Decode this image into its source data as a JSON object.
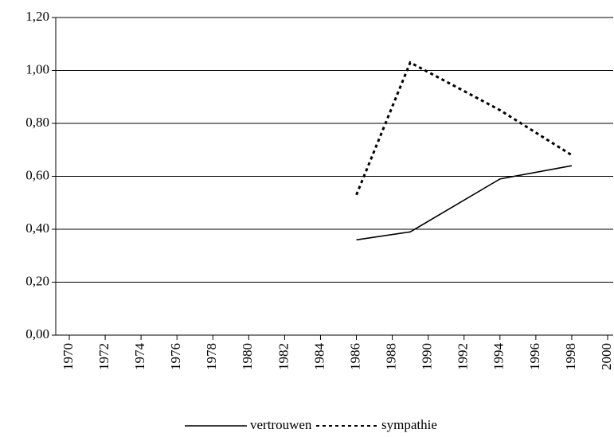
{
  "chart_data": {
    "type": "line",
    "series": [
      {
        "name": "vertrouwen",
        "color": "#000000",
        "dash": "solid",
        "x": [
          1986,
          1989,
          1994,
          1998
        ],
        "values": [
          0.36,
          0.39,
          0.59,
          0.64
        ]
      },
      {
        "name": "sympathie",
        "color": "#000000",
        "dash": "dotted",
        "x": [
          1986,
          1989,
          1994,
          1998
        ],
        "values": [
          0.53,
          1.03,
          0.85,
          0.68
        ]
      }
    ],
    "xlim": [
      1970,
      2000
    ],
    "xticks": [
      1970,
      1972,
      1974,
      1976,
      1978,
      1980,
      1982,
      1984,
      1986,
      1988,
      1990,
      1992,
      1994,
      1996,
      1998,
      2000
    ],
    "ylim": [
      0,
      1.2
    ],
    "yticks": [
      {
        "value": 0,
        "label": "0,00"
      },
      {
        "value": 0.2,
        "label": "0,20"
      },
      {
        "value": 0.4,
        "label": "0,40"
      },
      {
        "value": 0.6,
        "label": "0,60"
      },
      {
        "value": 0.8,
        "label": "0,80"
      },
      {
        "value": 1.0,
        "label": "1,00"
      },
      {
        "value": 1.2,
        "label": "1,20"
      }
    ],
    "grid": true,
    "legend": "bottom"
  }
}
